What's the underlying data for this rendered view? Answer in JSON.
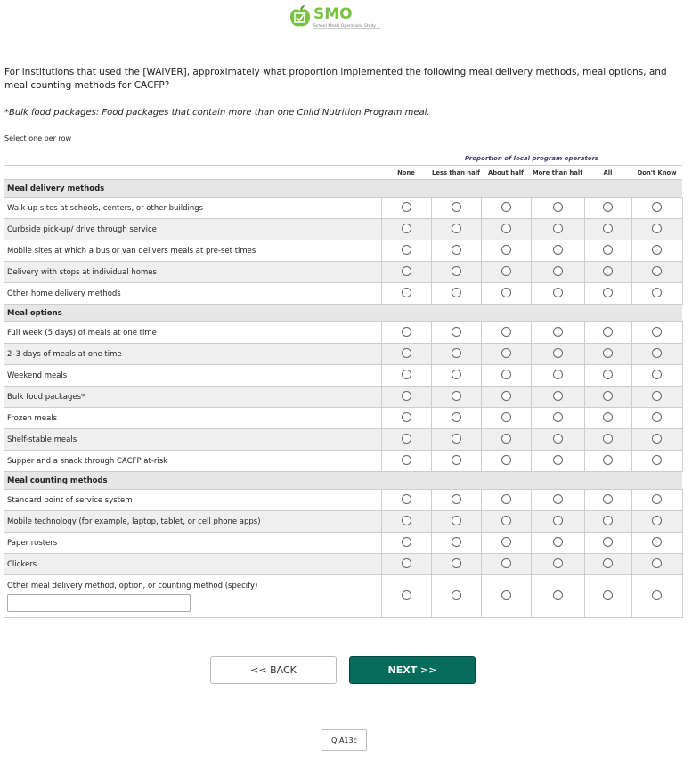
{
  "logo": {
    "brand": "SMO",
    "tagline": "School Meals Operations Study",
    "color": "#7ac143"
  },
  "question": "For institutions that used the [WAIVER], approximately what proportion implemented the following meal delivery methods, meal options, and meal counting methods for CACFP?",
  "note": "*Bulk food packages: Food packages that contain more than one Child Nutrition Program meal.",
  "instruction": "Select one per row",
  "table": {
    "group_header": "Proportion of local program operators",
    "columns": [
      "None",
      "Less than half",
      "About half",
      "More than half",
      "All",
      "Don't Know"
    ],
    "sections": [
      {
        "title": "Meal delivery methods",
        "rows": [
          "Walk-up sites at schools, centers, or other buildings",
          "Curbside pick-up/ drive through service",
          "Mobile sites at which a bus or van delivers meals at pre-set times",
          "Delivery with stops at individual homes",
          "Other home delivery methods"
        ]
      },
      {
        "title": "Meal options",
        "rows": [
          "Full week (5 days) of meals at one time",
          "2–3 days of meals at one time",
          "Weekend meals",
          "Bulk food packages*",
          "Frozen meals",
          "Shelf-stable meals",
          "Supper and a snack through CACFP at-risk"
        ]
      },
      {
        "title": "Meal counting methods",
        "rows": [
          "Standard point of service system",
          "Mobile technology (for example, laptop, tablet, or cell phone apps)",
          "Paper rosters",
          "Clickers"
        ]
      }
    ],
    "other_row": {
      "label": "Other meal delivery method, option, or counting method (specify)",
      "value": ""
    }
  },
  "buttons": {
    "back": "<< BACK",
    "next": "NEXT >>",
    "next_color": "#066b5b"
  },
  "question_id": "Q:A13c"
}
